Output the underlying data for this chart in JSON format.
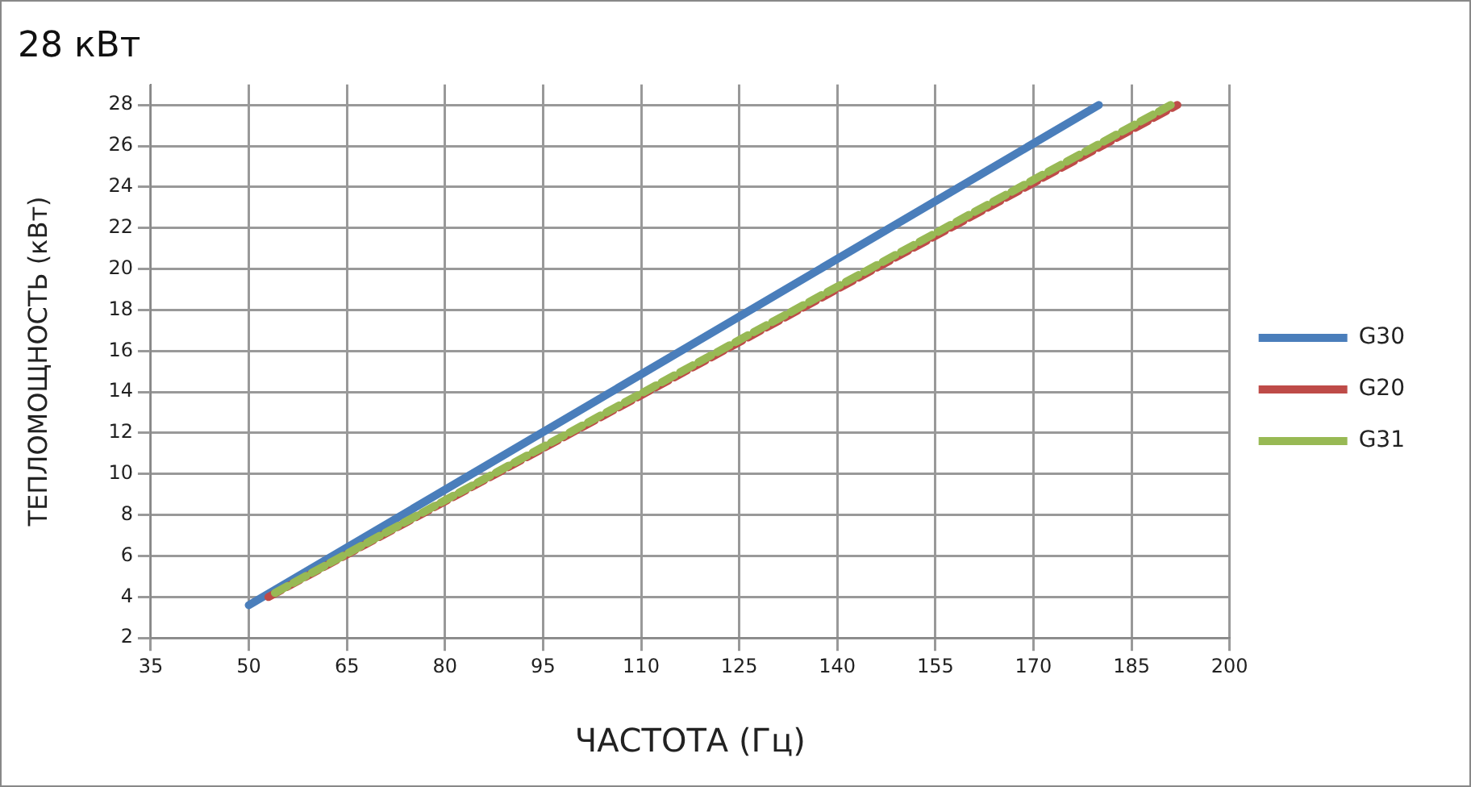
{
  "chart_data": {
    "type": "line",
    "title": "28 кВт",
    "xlabel": "ЧАСТОТА (Гц)",
    "ylabel": "ТЕПЛОМОЩНОСТЬ (кВт)",
    "xlim": [
      35,
      200
    ],
    "xticks": [
      35,
      50,
      65,
      80,
      95,
      110,
      125,
      140,
      155,
      170,
      185,
      200
    ],
    "ylim": [
      2,
      29
    ],
    "yticks": [
      2,
      4,
      6,
      8,
      10,
      12,
      14,
      16,
      18,
      20,
      22,
      24,
      26,
      28
    ],
    "grid": true,
    "legend": "right",
    "marker": "none",
    "series": [
      {
        "name": "G30",
        "color": "#4a7ebb",
        "x": [
          50,
          180
        ],
        "values": [
          3.6,
          28
        ],
        "line_style": "solid"
      },
      {
        "name": "G20",
        "color": "#be4b48",
        "x": [
          53,
          192
        ],
        "values": [
          4,
          28
        ],
        "line_style": "dashed"
      },
      {
        "name": "G31",
        "color": "#98b954",
        "x": [
          54,
          191
        ],
        "values": [
          4.2,
          28
        ],
        "line_style": "dashed"
      }
    ]
  }
}
